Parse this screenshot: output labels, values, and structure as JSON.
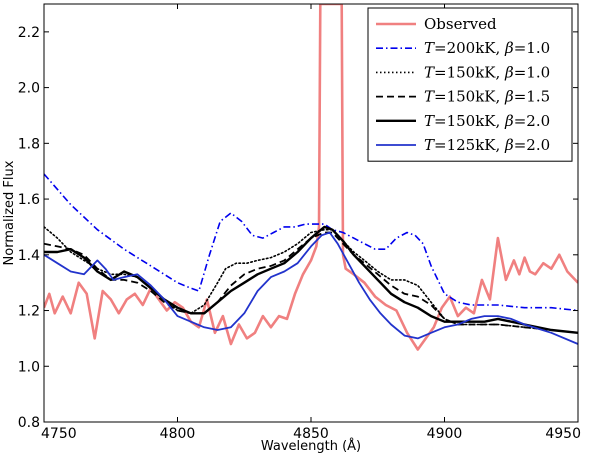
{
  "chart_data": {
    "type": "line",
    "xlabel": "Wavelength (Å)",
    "ylabel": "Normalized Flux",
    "xlim": [
      4750,
      4950
    ],
    "ylim": [
      0.8,
      2.3
    ],
    "xticks": [
      4750,
      4800,
      4850,
      4900,
      4950
    ],
    "xtick_labels": [
      "4750",
      "4800",
      "4850",
      "4900",
      "4950"
    ],
    "yticks": [
      0.8,
      1.0,
      1.2,
      1.4,
      1.6,
      1.8,
      2.0,
      2.2
    ],
    "ytick_labels": [
      "0.8",
      "1.0",
      "1.2",
      "1.4",
      "1.6",
      "1.8",
      "2.0",
      "2.2"
    ],
    "grid": false,
    "legend_position": "top-right",
    "series": [
      {
        "name": "Observed",
        "legend_parts": [
          {
            "t": "Observed",
            "i": false
          }
        ],
        "color": "#f08080",
        "style": "solid",
        "width": 2.6,
        "x": [
          4750,
          4752,
          4754,
          4757,
          4760,
          4763,
          4766,
          4769,
          4772,
          4775,
          4778,
          4781,
          4784,
          4787,
          4790,
          4793,
          4796,
          4799,
          4802,
          4805,
          4808,
          4811,
          4814,
          4817,
          4820,
          4823,
          4826,
          4829,
          4832,
          4835,
          4838,
          4841,
          4844,
          4847,
          4850,
          4852,
          4853,
          4853.5,
          4854,
          4855,
          4856,
          4857,
          4858,
          4859,
          4860,
          4861,
          4861.5,
          4862,
          4863,
          4866,
          4870,
          4874,
          4878,
          4882,
          4886,
          4890,
          4893,
          4896,
          4899,
          4902,
          4905,
          4908,
          4911,
          4914,
          4917,
          4920,
          4923,
          4926,
          4928,
          4930,
          4932,
          4934,
          4937,
          4940,
          4943,
          4946,
          4950
        ],
        "y": [
          1.21,
          1.26,
          1.19,
          1.25,
          1.19,
          1.3,
          1.26,
          1.1,
          1.27,
          1.24,
          1.19,
          1.24,
          1.26,
          1.22,
          1.28,
          1.24,
          1.2,
          1.23,
          1.21,
          1.16,
          1.14,
          1.24,
          1.12,
          1.18,
          1.08,
          1.15,
          1.1,
          1.12,
          1.18,
          1.14,
          1.18,
          1.17,
          1.26,
          1.33,
          1.38,
          1.43,
          1.5,
          2.3,
          2.3,
          2.3,
          2.3,
          2.3,
          2.3,
          2.3,
          2.3,
          2.3,
          2.3,
          1.4,
          1.35,
          1.33,
          1.3,
          1.25,
          1.22,
          1.2,
          1.12,
          1.06,
          1.1,
          1.14,
          1.21,
          1.25,
          1.18,
          1.21,
          1.19,
          1.31,
          1.24,
          1.46,
          1.31,
          1.38,
          1.33,
          1.39,
          1.34,
          1.33,
          1.37,
          1.35,
          1.4,
          1.34,
          1.3
        ]
      },
      {
        "name": "T=200kK, β=1.0",
        "legend_parts": [
          {
            "t": "T",
            "i": true
          },
          {
            "t": "=200kK, ",
            "i": false
          },
          {
            "t": "β",
            "i": true
          },
          {
            "t": "=1.0",
            "i": false
          }
        ],
        "color": "#0000ee",
        "style": "dashdot",
        "width": 1.6,
        "x": [
          4750,
          4760,
          4770,
          4780,
          4790,
          4800,
          4805,
          4808,
          4812,
          4816,
          4820,
          4824,
          4828,
          4832,
          4836,
          4840,
          4844,
          4848,
          4852,
          4855,
          4858,
          4862,
          4866,
          4870,
          4874,
          4878,
          4882,
          4886,
          4889,
          4892,
          4895,
          4898,
          4900,
          4905,
          4910,
          4920,
          4930,
          4940,
          4950
        ],
        "y": [
          1.69,
          1.58,
          1.49,
          1.42,
          1.36,
          1.3,
          1.28,
          1.27,
          1.4,
          1.52,
          1.55,
          1.52,
          1.47,
          1.46,
          1.48,
          1.5,
          1.5,
          1.51,
          1.51,
          1.51,
          1.49,
          1.48,
          1.46,
          1.44,
          1.42,
          1.42,
          1.46,
          1.48,
          1.47,
          1.44,
          1.36,
          1.3,
          1.26,
          1.23,
          1.22,
          1.22,
          1.21,
          1.21,
          1.2
        ]
      },
      {
        "name": "T=150kK, β=1.0",
        "legend_parts": [
          {
            "t": "T",
            "i": true
          },
          {
            "t": "=150kK, ",
            "i": false
          },
          {
            "t": "β",
            "i": true
          },
          {
            "t": "=1.0",
            "i": false
          }
        ],
        "color": "#000000",
        "style": "dotted",
        "width": 1.6,
        "x": [
          4750,
          4755,
          4760,
          4765,
          4770,
          4775,
          4780,
          4785,
          4790,
          4795,
          4800,
          4805,
          4810,
          4815,
          4818,
          4822,
          4826,
          4830,
          4835,
          4840,
          4845,
          4850,
          4855,
          4858,
          4862,
          4866,
          4870,
          4875,
          4880,
          4885,
          4890,
          4895,
          4900,
          4905,
          4910,
          4920,
          4930,
          4940,
          4950
        ],
        "y": [
          1.5,
          1.46,
          1.41,
          1.38,
          1.35,
          1.33,
          1.33,
          1.32,
          1.28,
          1.24,
          1.2,
          1.19,
          1.22,
          1.3,
          1.35,
          1.37,
          1.37,
          1.38,
          1.39,
          1.41,
          1.44,
          1.48,
          1.49,
          1.49,
          1.45,
          1.41,
          1.38,
          1.34,
          1.31,
          1.31,
          1.29,
          1.23,
          1.17,
          1.15,
          1.15,
          1.15,
          1.14,
          1.13,
          1.12
        ]
      },
      {
        "name": "T=150kK, β=1.5",
        "legend_parts": [
          {
            "t": "T",
            "i": true
          },
          {
            "t": "=150kK, ",
            "i": false
          },
          {
            "t": "β",
            "i": true
          },
          {
            "t": "=1.5",
            "i": false
          }
        ],
        "color": "#000000",
        "style": "dashed",
        "width": 1.8,
        "x": [
          4750,
          4755,
          4760,
          4765,
          4770,
          4775,
          4780,
          4785,
          4790,
          4795,
          4800,
          4805,
          4810,
          4815,
          4820,
          4825,
          4830,
          4835,
          4840,
          4845,
          4850,
          4855,
          4858,
          4862,
          4866,
          4870,
          4875,
          4880,
          4885,
          4890,
          4895,
          4900,
          4905,
          4910,
          4920,
          4930,
          4940,
          4950
        ],
        "y": [
          1.44,
          1.43,
          1.42,
          1.4,
          1.35,
          1.31,
          1.31,
          1.3,
          1.27,
          1.23,
          1.2,
          1.19,
          1.19,
          1.23,
          1.29,
          1.33,
          1.35,
          1.36,
          1.38,
          1.42,
          1.46,
          1.48,
          1.48,
          1.44,
          1.4,
          1.37,
          1.33,
          1.29,
          1.26,
          1.25,
          1.22,
          1.17,
          1.15,
          1.15,
          1.15,
          1.14,
          1.13,
          1.12
        ]
      },
      {
        "name": "T=150kK, β=2.0",
        "legend_parts": [
          {
            "t": "T",
            "i": true
          },
          {
            "t": "=150kK, ",
            "i": false
          },
          {
            "t": "β",
            "i": true
          },
          {
            "t": "=2.0",
            "i": false
          }
        ],
        "color": "#000000",
        "style": "solid",
        "width": 2.4,
        "x": [
          4750,
          4755,
          4760,
          4765,
          4770,
          4775,
          4780,
          4785,
          4790,
          4795,
          4800,
          4805,
          4810,
          4815,
          4820,
          4825,
          4830,
          4835,
          4840,
          4845,
          4850,
          4855,
          4858,
          4862,
          4866,
          4870,
          4875,
          4880,
          4885,
          4890,
          4895,
          4900,
          4905,
          4910,
          4915,
          4920,
          4930,
          4940,
          4950
        ],
        "y": [
          1.41,
          1.41,
          1.42,
          1.39,
          1.34,
          1.31,
          1.34,
          1.32,
          1.28,
          1.24,
          1.21,
          1.19,
          1.19,
          1.23,
          1.27,
          1.3,
          1.33,
          1.35,
          1.37,
          1.41,
          1.46,
          1.5,
          1.49,
          1.45,
          1.4,
          1.36,
          1.31,
          1.26,
          1.23,
          1.21,
          1.18,
          1.16,
          1.16,
          1.16,
          1.16,
          1.17,
          1.15,
          1.13,
          1.12
        ]
      },
      {
        "name": "T=125kK, β=2.0",
        "legend_parts": [
          {
            "t": "T",
            "i": true
          },
          {
            "t": "=125kK, ",
            "i": false
          },
          {
            "t": "β",
            "i": true
          },
          {
            "t": "=2.0",
            "i": false
          }
        ],
        "color": "#2233cc",
        "style": "solid",
        "width": 1.8,
        "x": [
          4750,
          4755,
          4760,
          4765,
          4770,
          4773,
          4776,
          4780,
          4785,
          4790,
          4795,
          4800,
          4805,
          4810,
          4815,
          4820,
          4825,
          4830,
          4835,
          4840,
          4845,
          4850,
          4854,
          4857,
          4860,
          4864,
          4868,
          4872,
          4876,
          4880,
          4885,
          4890,
          4895,
          4900,
          4905,
          4910,
          4915,
          4920,
          4925,
          4930,
          4940,
          4950
        ],
        "y": [
          1.4,
          1.37,
          1.34,
          1.33,
          1.38,
          1.35,
          1.31,
          1.32,
          1.33,
          1.29,
          1.24,
          1.18,
          1.16,
          1.14,
          1.13,
          1.14,
          1.19,
          1.27,
          1.32,
          1.34,
          1.37,
          1.43,
          1.47,
          1.48,
          1.44,
          1.37,
          1.3,
          1.24,
          1.19,
          1.15,
          1.11,
          1.1,
          1.12,
          1.14,
          1.15,
          1.17,
          1.18,
          1.18,
          1.17,
          1.15,
          1.12,
          1.08
        ]
      }
    ]
  }
}
